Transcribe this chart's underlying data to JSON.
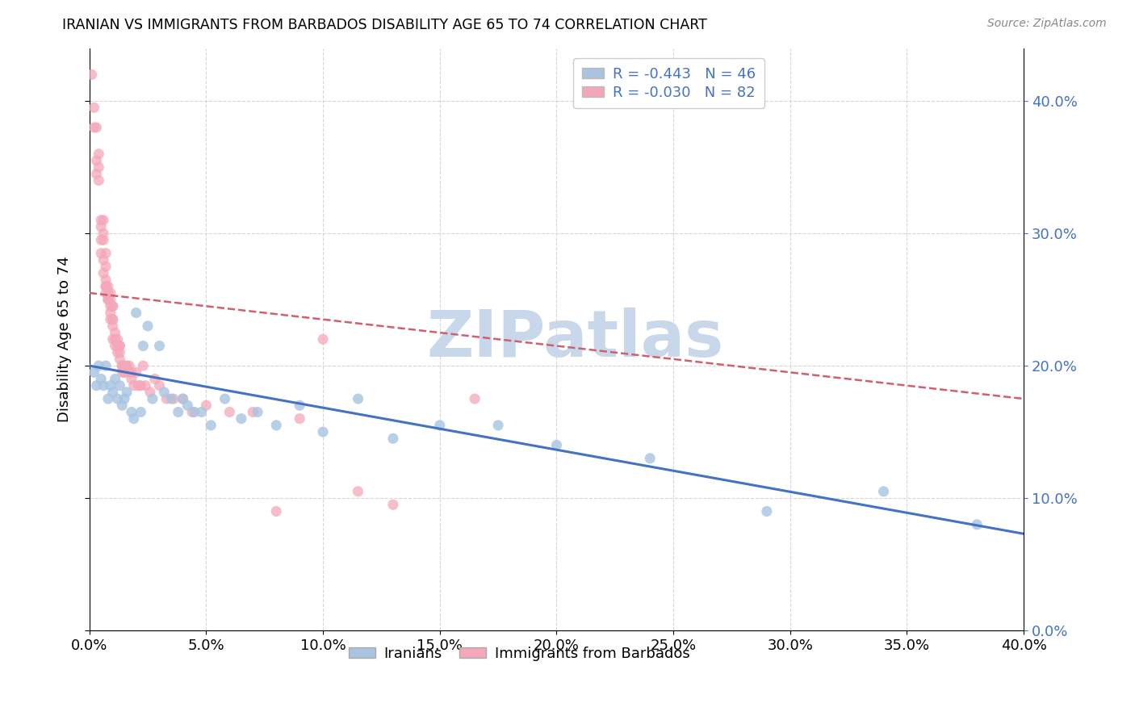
{
  "title": "IRANIAN VS IMMIGRANTS FROM BARBADOS DISABILITY AGE 65 TO 74 CORRELATION CHART",
  "source": "Source: ZipAtlas.com",
  "ylabel_label": "Disability Age 65 to 74",
  "xlim": [
    0.0,
    0.4
  ],
  "ylim": [
    0.0,
    0.44
  ],
  "xticks": [
    0.0,
    0.05,
    0.1,
    0.15,
    0.2,
    0.25,
    0.3,
    0.35,
    0.4
  ],
  "yticks": [
    0.0,
    0.1,
    0.2,
    0.3,
    0.4
  ],
  "legend_r_iranian": "R = -0.443",
  "legend_n_iranian": "N = 46",
  "legend_r_barbados": "R = -0.030",
  "legend_n_barbados": "N = 82",
  "color_iranian": "#a8c4e0",
  "color_barbados": "#f4a7b9",
  "line_color_iranian": "#4472c4",
  "line_color_barbados": "#d06070",
  "watermark_text": "ZIPatlas",
  "watermark_color": "#c8d8ea",
  "iranians_x": [
    0.002,
    0.003,
    0.004,
    0.005,
    0.006,
    0.007,
    0.008,
    0.009,
    0.01,
    0.011,
    0.012,
    0.013,
    0.014,
    0.015,
    0.016,
    0.018,
    0.019,
    0.02,
    0.022,
    0.023,
    0.025,
    0.027,
    0.03,
    0.032,
    0.035,
    0.038,
    0.04,
    0.042,
    0.045,
    0.048,
    0.052,
    0.058,
    0.065,
    0.072,
    0.08,
    0.09,
    0.1,
    0.115,
    0.13,
    0.15,
    0.175,
    0.2,
    0.24,
    0.29,
    0.34,
    0.38
  ],
  "iranians_y": [
    0.195,
    0.185,
    0.2,
    0.19,
    0.185,
    0.2,
    0.175,
    0.185,
    0.18,
    0.19,
    0.175,
    0.185,
    0.17,
    0.175,
    0.18,
    0.165,
    0.16,
    0.24,
    0.165,
    0.215,
    0.23,
    0.175,
    0.215,
    0.18,
    0.175,
    0.165,
    0.175,
    0.17,
    0.165,
    0.165,
    0.155,
    0.175,
    0.16,
    0.165,
    0.155,
    0.17,
    0.15,
    0.175,
    0.145,
    0.155,
    0.155,
    0.14,
    0.13,
    0.09,
    0.105,
    0.08
  ],
  "barbados_x": [
    0.001,
    0.002,
    0.002,
    0.003,
    0.003,
    0.003,
    0.004,
    0.004,
    0.004,
    0.005,
    0.005,
    0.005,
    0.005,
    0.006,
    0.006,
    0.006,
    0.006,
    0.006,
    0.007,
    0.007,
    0.007,
    0.007,
    0.007,
    0.007,
    0.008,
    0.008,
    0.008,
    0.008,
    0.009,
    0.009,
    0.009,
    0.009,
    0.009,
    0.01,
    0.01,
    0.01,
    0.01,
    0.01,
    0.01,
    0.011,
    0.011,
    0.011,
    0.012,
    0.012,
    0.012,
    0.013,
    0.013,
    0.013,
    0.013,
    0.014,
    0.014,
    0.014,
    0.015,
    0.015,
    0.015,
    0.016,
    0.017,
    0.017,
    0.018,
    0.018,
    0.019,
    0.02,
    0.021,
    0.022,
    0.023,
    0.024,
    0.026,
    0.028,
    0.03,
    0.033,
    0.036,
    0.04,
    0.044,
    0.05,
    0.06,
    0.07,
    0.08,
    0.09,
    0.1,
    0.115,
    0.13,
    0.165
  ],
  "barbados_y": [
    0.42,
    0.38,
    0.395,
    0.345,
    0.355,
    0.38,
    0.34,
    0.35,
    0.36,
    0.305,
    0.31,
    0.285,
    0.295,
    0.3,
    0.31,
    0.28,
    0.295,
    0.27,
    0.26,
    0.275,
    0.285,
    0.265,
    0.26,
    0.255,
    0.25,
    0.26,
    0.25,
    0.255,
    0.245,
    0.255,
    0.24,
    0.25,
    0.235,
    0.235,
    0.245,
    0.23,
    0.22,
    0.235,
    0.245,
    0.22,
    0.225,
    0.215,
    0.215,
    0.22,
    0.21,
    0.215,
    0.205,
    0.215,
    0.21,
    0.2,
    0.195,
    0.2,
    0.195,
    0.2,
    0.195,
    0.2,
    0.195,
    0.2,
    0.195,
    0.19,
    0.185,
    0.195,
    0.185,
    0.185,
    0.2,
    0.185,
    0.18,
    0.19,
    0.185,
    0.175,
    0.175,
    0.175,
    0.165,
    0.17,
    0.165,
    0.165,
    0.09,
    0.16,
    0.22,
    0.105,
    0.095,
    0.175
  ]
}
